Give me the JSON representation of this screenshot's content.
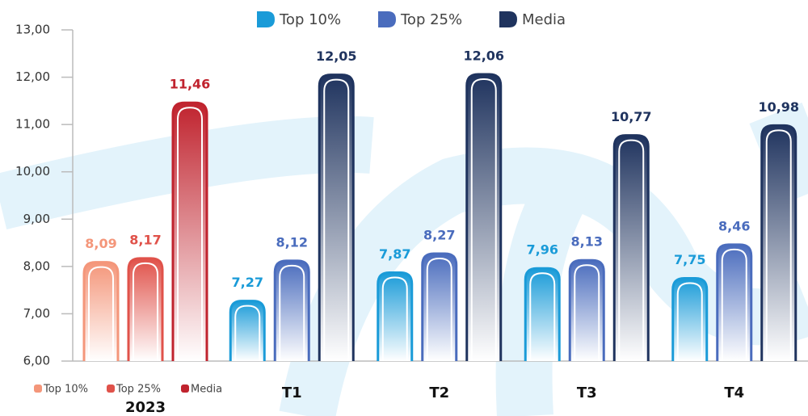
{
  "chart_data": [
    {
      "type": "bar",
      "categories": [
        "2023"
      ],
      "legend": "bottom-left",
      "ylim": [
        6,
        13
      ],
      "yticks": [
        {
          "value": 6,
          "label": "6,00"
        },
        {
          "value": 7,
          "label": "7,00"
        },
        {
          "value": 8,
          "label": "8,00"
        },
        {
          "value": 9,
          "label": "9,00"
        },
        {
          "value": 10,
          "label": "10,00"
        },
        {
          "value": 11,
          "label": "11,00"
        },
        {
          "value": 12,
          "label": "12,00"
        },
        {
          "value": 13,
          "label": "13,00"
        }
      ],
      "series": [
        {
          "name": "Top 10%",
          "color": "#f4967a",
          "values": [
            8.09
          ],
          "value_labels": [
            "8,09"
          ]
        },
        {
          "name": "Top 25%",
          "color": "#e0524a",
          "values": [
            8.17
          ],
          "value_labels": [
            "8,17"
          ]
        },
        {
          "name": "Media",
          "color": "#c0232e",
          "values": [
            11.46
          ],
          "value_labels": [
            "11,46"
          ]
        }
      ]
    },
    {
      "type": "bar",
      "categories": [
        "T1",
        "T2",
        "T3",
        "T4"
      ],
      "legend": "top",
      "ylim": [
        6,
        13
      ],
      "series": [
        {
          "name": "Top 10%",
          "color": "#1a9bd8",
          "values": [
            7.27,
            7.87,
            7.96,
            7.75
          ],
          "value_labels": [
            "7,27",
            "7,87",
            "7,96",
            "7,75"
          ]
        },
        {
          "name": "Top 25%",
          "color": "#4a6cbd",
          "values": [
            8.12,
            8.27,
            8.13,
            8.46
          ],
          "value_labels": [
            "8,12",
            "8,27",
            "8,13",
            "8,46"
          ]
        },
        {
          "name": "Media",
          "color": "#1f335e",
          "values": [
            12.05,
            12.06,
            10.77,
            10.98
          ],
          "value_labels": [
            "12,05",
            "12,06",
            "10,77",
            "10,98"
          ]
        }
      ]
    }
  ]
}
